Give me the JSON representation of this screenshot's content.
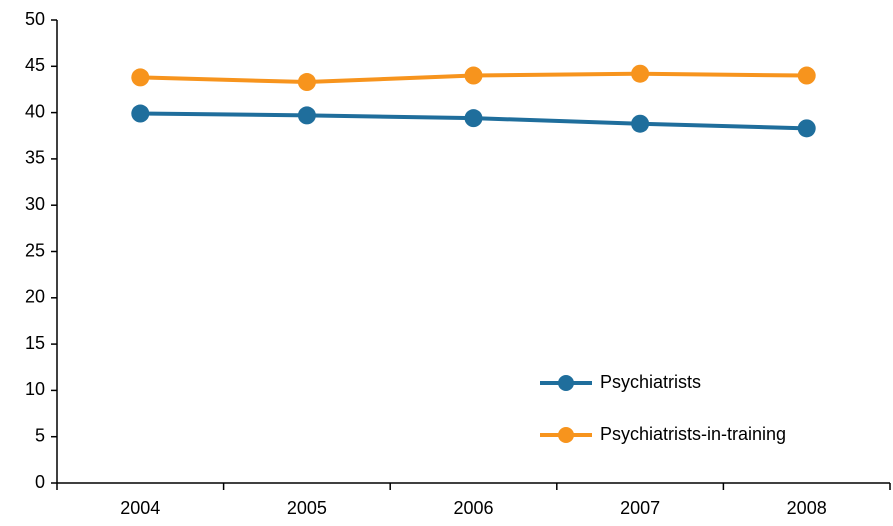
{
  "chart_data": {
    "type": "line",
    "categories": [
      "2004",
      "2005",
      "2006",
      "2007",
      "2008"
    ],
    "series": [
      {
        "name": "Psychiatrists",
        "color": "#1f6e9c",
        "values": [
          39.9,
          39.7,
          39.4,
          38.8,
          38.3
        ]
      },
      {
        "name": "Psychiatrists-in-training",
        "color": "#f7941d",
        "values": [
          43.8,
          43.3,
          44.0,
          44.2,
          44.0
        ]
      }
    ],
    "ylim": [
      0,
      50
    ],
    "yticks": [
      0,
      5,
      10,
      15,
      20,
      25,
      30,
      35,
      40,
      45,
      50
    ],
    "grid": false,
    "legend": "lower-right"
  }
}
